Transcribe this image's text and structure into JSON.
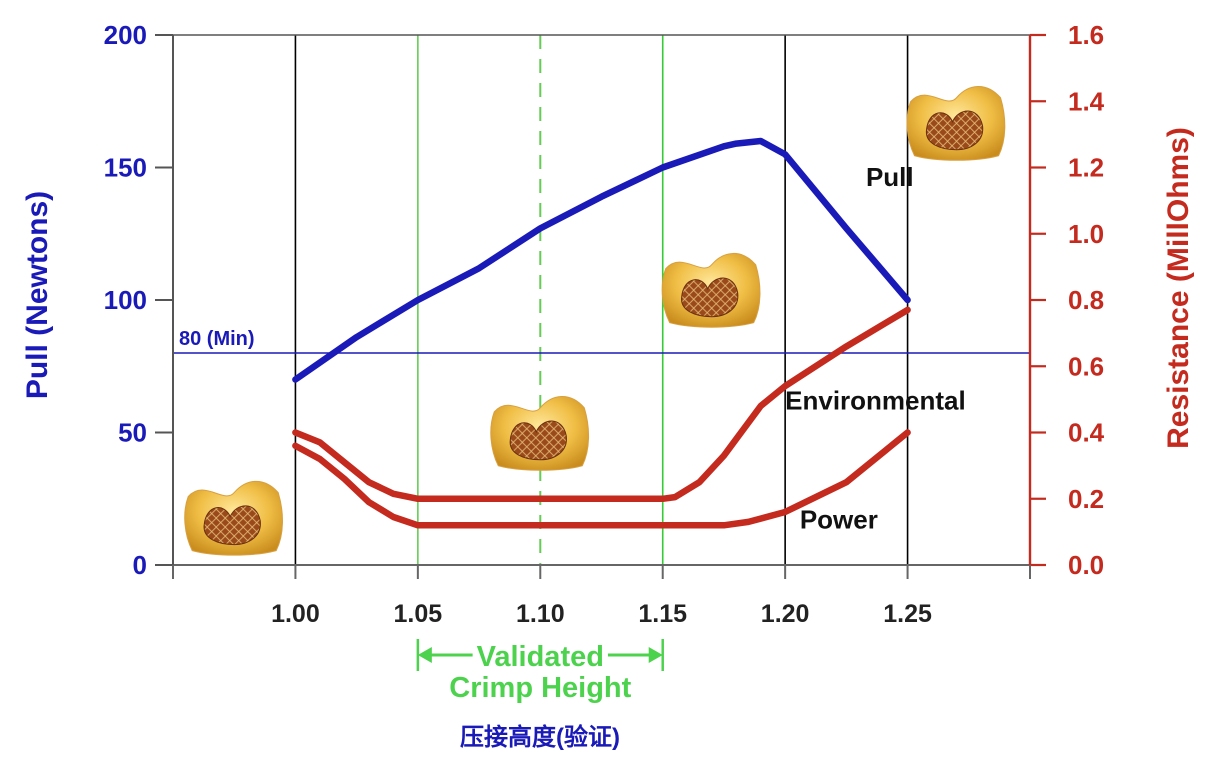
{
  "chart_data": {
    "type": "line",
    "y_left": {
      "label": "Pull (Newtons)",
      "range": [
        0,
        200
      ],
      "ticks": [
        0,
        50,
        100,
        150,
        200
      ]
    },
    "y_right": {
      "label": "Resistance (MillOhms)",
      "range": [
        0.0,
        1.6
      ],
      "ticks": [
        "0.0",
        "0.2",
        "0.4",
        "0.6",
        "0.8",
        "1.0",
        "1.2",
        "1.4",
        "1.6"
      ]
    },
    "x": {
      "range": [
        0.95,
        1.3
      ],
      "ticks": [
        "1.00",
        "1.05",
        "1.10",
        "1.15",
        "1.20",
        "1.25"
      ]
    },
    "series": [
      {
        "name": "Pull",
        "axis": "left",
        "color": "#1a1ab8",
        "points": [
          [
            1.0,
            70
          ],
          [
            1.025,
            86
          ],
          [
            1.05,
            100
          ],
          [
            1.075,
            112
          ],
          [
            1.1,
            127
          ],
          [
            1.125,
            139
          ],
          [
            1.15,
            150
          ],
          [
            1.175,
            158
          ],
          [
            1.18,
            159
          ],
          [
            1.19,
            160
          ],
          [
            1.2,
            155
          ],
          [
            1.225,
            127
          ],
          [
            1.25,
            100
          ]
        ]
      },
      {
        "name": "Environmental",
        "axis": "right",
        "color": "#c42a1e",
        "points": [
          [
            1.0,
            0.4
          ],
          [
            1.01,
            0.37
          ],
          [
            1.02,
            0.31
          ],
          [
            1.03,
            0.25
          ],
          [
            1.04,
            0.215
          ],
          [
            1.05,
            0.2
          ],
          [
            1.1,
            0.2
          ],
          [
            1.15,
            0.2
          ],
          [
            1.155,
            0.205
          ],
          [
            1.165,
            0.25
          ],
          [
            1.175,
            0.33
          ],
          [
            1.18,
            0.38
          ],
          [
            1.19,
            0.48
          ],
          [
            1.2,
            0.54
          ],
          [
            1.225,
            0.66
          ],
          [
            1.25,
            0.77
          ]
        ]
      },
      {
        "name": "Power",
        "axis": "right",
        "color": "#c42a1e",
        "points": [
          [
            1.0,
            0.36
          ],
          [
            1.01,
            0.32
          ],
          [
            1.02,
            0.26
          ],
          [
            1.03,
            0.19
          ],
          [
            1.04,
            0.145
          ],
          [
            1.05,
            0.12
          ],
          [
            1.1,
            0.12
          ],
          [
            1.15,
            0.12
          ],
          [
            1.175,
            0.12
          ],
          [
            1.185,
            0.13
          ],
          [
            1.2,
            0.16
          ],
          [
            1.225,
            0.25
          ],
          [
            1.25,
            0.4
          ]
        ]
      }
    ],
    "reference_lines": [
      {
        "axis": "left",
        "value": 80,
        "label": "80 (Min)",
        "color": "#1a1ab8"
      }
    ],
    "vertical_lines": [
      {
        "x": 1.0,
        "color": "#000000",
        "style": "solid"
      },
      {
        "x": 1.05,
        "color": "#66cc55",
        "style": "solid"
      },
      {
        "x": 1.1,
        "color": "#66cc55",
        "style": "dashed"
      },
      {
        "x": 1.15,
        "color": "#33cc33",
        "style": "solid"
      },
      {
        "x": 1.2,
        "color": "#000000",
        "style": "solid"
      },
      {
        "x": 1.25,
        "color": "#000000",
        "style": "solid"
      }
    ],
    "validated_range": {
      "from": 1.05,
      "to": 1.15,
      "label_line1": "Validated",
      "label_line2": "Crimp Height",
      "color": "#4dd24d"
    },
    "footer_label": "压接高度(验证)",
    "colors": {
      "pull_axis": "#1a1ab8",
      "resistance_axis": "#c42a1e",
      "grid": "#000000",
      "crimp_image": "#e8b13a"
    },
    "crimp_images": [
      {
        "x": 0.975,
        "y_left": 16
      },
      {
        "x": 1.1,
        "y_left": 48
      },
      {
        "x": 1.17,
        "y_left": 102
      },
      {
        "x": 1.27,
        "y_left": 165
      }
    ]
  }
}
